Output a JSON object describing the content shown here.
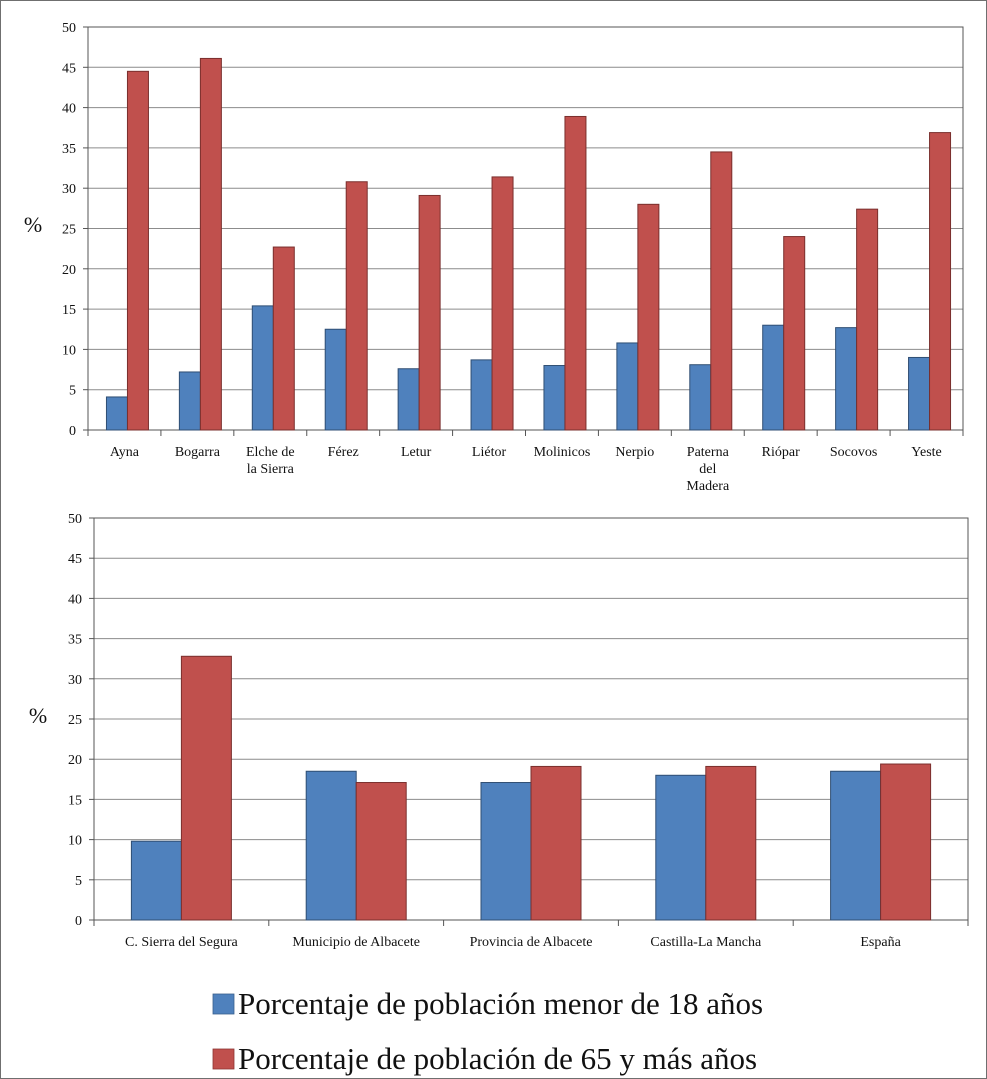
{
  "colors": {
    "menor18": "#4F81BD",
    "mayor65": "#C0504D",
    "grid": "#8c8c8c",
    "axis": "#555555"
  },
  "legend": [
    {
      "label": "Porcentaje de población menor de 18 años",
      "color": "#4F81BD"
    },
    {
      "label": "Porcentaje de población de 65 y más años",
      "color": "#C0504D"
    }
  ],
  "chart_data": [
    {
      "type": "bar",
      "ylabel": "%",
      "ylim": [
        0,
        50
      ],
      "yticks": [
        0,
        5,
        10,
        15,
        20,
        25,
        30,
        35,
        40,
        45,
        50
      ],
      "grid": true,
      "categories": [
        "Ayna",
        "Bogarra",
        "Elche de la Sierra",
        "Férez",
        "Letur",
        "Liétor",
        "Molinicos",
        "Nerpio",
        "Paterna del Madera",
        "Riópar",
        "Socovos",
        "Yeste"
      ],
      "category_lines": [
        [
          "Ayna"
        ],
        [
          "Bogarra"
        ],
        [
          "Elche de",
          "la Sierra"
        ],
        [
          "Férez"
        ],
        [
          "Letur"
        ],
        [
          "Liétor"
        ],
        [
          "Molinicos"
        ],
        [
          "Nerpio"
        ],
        [
          "Paterna",
          "del",
          "Madera"
        ],
        [
          "Riópar"
        ],
        [
          "Socovos"
        ],
        [
          "Yeste"
        ]
      ],
      "series": [
        {
          "name": "Porcentaje de población menor de 18 años",
          "color": "#4F81BD",
          "values": [
            4.1,
            7.2,
            15.4,
            12.5,
            7.6,
            8.7,
            8.0,
            10.8,
            8.1,
            13.0,
            12.7,
            9.0
          ]
        },
        {
          "name": "Porcentaje de población de 65 y más años",
          "color": "#C0504D",
          "values": [
            44.5,
            46.1,
            22.7,
            30.8,
            29.1,
            31.4,
            38.9,
            28.0,
            34.5,
            24.0,
            27.4,
            36.9
          ]
        }
      ]
    },
    {
      "type": "bar",
      "ylabel": "%",
      "ylim": [
        0,
        50
      ],
      "yticks": [
        0,
        5,
        10,
        15,
        20,
        25,
        30,
        35,
        40,
        45,
        50
      ],
      "grid": true,
      "categories": [
        "C. Sierra del Segura",
        "Municipio de Albacete",
        "Provincia de Albacete",
        "Castilla-La Mancha",
        "España"
      ],
      "category_lines": [
        [
          "C. Sierra del Segura"
        ],
        [
          "Municipio de Albacete"
        ],
        [
          "Provincia de Albacete"
        ],
        [
          "Castilla-La Mancha"
        ],
        [
          "España"
        ]
      ],
      "series": [
        {
          "name": "Porcentaje de población menor de 18 años",
          "color": "#4F81BD",
          "values": [
            9.8,
            18.5,
            17.1,
            18.0,
            18.5
          ]
        },
        {
          "name": "Porcentaje de población de 65 y más años",
          "color": "#C0504D",
          "values": [
            32.8,
            17.1,
            19.1,
            19.1,
            19.4
          ]
        }
      ]
    }
  ]
}
